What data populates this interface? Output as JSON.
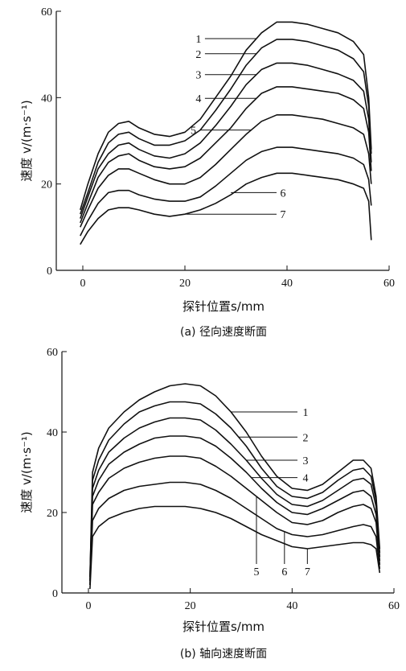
{
  "chart_data": [
    {
      "type": "line",
      "caption": "(a) 径向速度断面",
      "xlabel": "探针位置s/mm",
      "ylabel": "速度 v/(m·s⁻¹)",
      "xlim": [
        -5,
        60
      ],
      "ylim": [
        0,
        60
      ],
      "xticks": [
        "0",
        "20",
        "40",
        "60"
      ],
      "yticks": [
        "0",
        "20",
        "40",
        "60"
      ],
      "grid": false,
      "series": [
        {
          "name": "1",
          "x": [
            -0.5,
            1,
            3,
            5,
            7,
            9,
            11,
            14,
            17,
            20,
            23,
            26,
            29,
            32,
            35,
            38,
            41,
            44,
            47,
            50,
            53,
            55,
            56,
            56.5
          ],
          "y": [
            14,
            20,
            27,
            32,
            34,
            34.5,
            33,
            31.5,
            31,
            32,
            35,
            40,
            45,
            51,
            55,
            57.5,
            57.5,
            57,
            56,
            55,
            53,
            50,
            40,
            28
          ]
        },
        {
          "name": "2",
          "x": [
            -0.5,
            1,
            3,
            5,
            7,
            9,
            11,
            14,
            17,
            20,
            23,
            26,
            29,
            32,
            35,
            38,
            41,
            44,
            47,
            50,
            53,
            55,
            56,
            56.5
          ],
          "y": [
            13,
            18,
            25,
            29.5,
            31.5,
            32,
            30.5,
            29,
            29,
            30,
            32.5,
            37,
            42,
            47.5,
            51.5,
            53.5,
            53.5,
            53,
            52,
            51,
            49,
            46,
            38,
            27
          ]
        },
        {
          "name": "3",
          "x": [
            -0.5,
            1,
            3,
            5,
            7,
            9,
            11,
            14,
            17,
            20,
            23,
            26,
            29,
            32,
            35,
            38,
            41,
            44,
            47,
            50,
            53,
            55,
            56,
            56.5
          ],
          "y": [
            12,
            17,
            23.5,
            27,
            29,
            29.5,
            28,
            26.5,
            26,
            27,
            29.5,
            33.5,
            38,
            43,
            46.5,
            48,
            48,
            47.5,
            46.5,
            45.5,
            44,
            41.5,
            35,
            25
          ]
        },
        {
          "name": "4",
          "x": [
            -0.5,
            1,
            3,
            5,
            7,
            9,
            11,
            14,
            17,
            20,
            23,
            26,
            29,
            32,
            35,
            38,
            41,
            44,
            47,
            50,
            53,
            55,
            56,
            56.5
          ],
          "y": [
            11,
            15.5,
            21.5,
            25,
            26.5,
            27,
            25.5,
            24,
            23.5,
            24,
            26,
            29.5,
            33,
            37.5,
            41,
            42.5,
            42.5,
            42,
            41.5,
            41,
            39.5,
            37.5,
            32,
            23
          ]
        },
        {
          "name": "5",
          "x": [
            -0.5,
            1,
            3,
            5,
            7,
            9,
            11,
            14,
            17,
            20,
            23,
            26,
            29,
            32,
            35,
            38,
            41,
            44,
            47,
            50,
            53,
            55,
            56,
            56.5
          ],
          "y": [
            10,
            14,
            19,
            22,
            23.5,
            23.5,
            22.5,
            21,
            20,
            20,
            21.5,
            24.5,
            28,
            31.5,
            34.5,
            36,
            36,
            35.5,
            35,
            34,
            33,
            31.5,
            27,
            20
          ]
        },
        {
          "name": "6",
          "x": [
            -0.5,
            1,
            3,
            5,
            7,
            9,
            11,
            14,
            17,
            20,
            23,
            26,
            29,
            32,
            35,
            38,
            41,
            44,
            47,
            50,
            53,
            55,
            56,
            56.5
          ],
          "y": [
            8,
            11.5,
            15.5,
            18,
            18.5,
            18.5,
            17.5,
            16.5,
            16,
            16,
            17,
            19.5,
            22.5,
            25.5,
            27.5,
            28.5,
            28.5,
            28,
            27.5,
            27,
            26,
            24.5,
            21,
            15
          ]
        },
        {
          "name": "7",
          "x": [
            -0.5,
            1,
            3,
            5,
            7,
            9,
            11,
            14,
            17,
            20,
            23,
            26,
            29,
            32,
            35,
            38,
            41,
            44,
            47,
            50,
            53,
            55,
            56,
            56.5
          ],
          "y": [
            6,
            9,
            12,
            14,
            14.5,
            14.5,
            14,
            13,
            12.5,
            13,
            14,
            15.5,
            17.5,
            20,
            21.5,
            22.5,
            22.5,
            22,
            21.5,
            21,
            20,
            19,
            16,
            7
          ]
        }
      ],
      "curve_labels": [
        {
          "text": "1",
          "tx": 34,
          "ty": 57
        },
        {
          "text": "2",
          "tx": 34,
          "ty": 51
        },
        {
          "text": "3",
          "tx": 34,
          "ty": 45
        },
        {
          "text": "4",
          "tx": 34,
          "ty": 41
        },
        {
          "text": "5",
          "tx": 33,
          "ty": 35
        },
        {
          "text": "6",
          "tx": 29,
          "ty": 18
        },
        {
          "text": "7",
          "tx": 25,
          "ty": 13
        }
      ]
    },
    {
      "type": "line",
      "caption": "(b) 轴向速度断面",
      "xlabel": "探针位置s/mm",
      "ylabel": "速度 v/(m·s⁻¹)",
      "xlim": [
        -5,
        60
      ],
      "ylim": [
        0,
        60
      ],
      "xticks": [
        "0",
        "20",
        "40",
        "60"
      ],
      "yticks": [
        "0",
        "20",
        "40",
        "60"
      ],
      "grid": false,
      "series": [
        {
          "name": "1",
          "x": [
            0.3,
            0.8,
            2,
            4,
            7,
            10,
            13,
            16,
            19,
            22,
            25,
            28,
            31,
            34,
            37,
            40,
            43,
            46,
            49,
            52,
            54,
            55.5,
            56.5,
            57.2
          ],
          "y": [
            4,
            30,
            36,
            41,
            45,
            48,
            50,
            51.5,
            52,
            51.5,
            49,
            45,
            40,
            34,
            29,
            26,
            25.5,
            27,
            30,
            33,
            33,
            31,
            24,
            11
          ]
        },
        {
          "name": "2",
          "x": [
            0.3,
            0.8,
            2,
            4,
            7,
            10,
            13,
            16,
            19,
            22,
            25,
            28,
            31,
            34,
            37,
            40,
            43,
            46,
            49,
            52,
            54,
            55.5,
            56.5,
            57.2
          ],
          "y": [
            4,
            28,
            33,
            38,
            42,
            45,
            46.5,
            47.5,
            47.5,
            47,
            44.5,
            41,
            36.5,
            31,
            26.5,
            24,
            23.5,
            25,
            28,
            30.5,
            31,
            29,
            23,
            10
          ]
        },
        {
          "name": "3",
          "x": [
            0.3,
            0.8,
            2,
            4,
            7,
            10,
            13,
            16,
            19,
            22,
            25,
            28,
            31,
            34,
            37,
            40,
            43,
            46,
            49,
            52,
            54,
            55.5,
            56.5,
            57.2
          ],
          "y": [
            3,
            26,
            30.5,
            35,
            38.5,
            41,
            42.5,
            43.5,
            43.5,
            43,
            40.5,
            37,
            33,
            28.5,
            24.5,
            22,
            21.5,
            23,
            25.5,
            28,
            28.5,
            27,
            21.5,
            9
          ]
        },
        {
          "name": "4",
          "x": [
            0.3,
            0.8,
            2,
            4,
            7,
            10,
            13,
            16,
            19,
            22,
            25,
            28,
            31,
            34,
            37,
            40,
            43,
            46,
            49,
            52,
            54,
            55.5,
            56.5,
            57.2
          ],
          "y": [
            3,
            24,
            28,
            32,
            35,
            37,
            38.5,
            39,
            39,
            38.5,
            36.5,
            33.5,
            30,
            26,
            22.5,
            20,
            19.5,
            21,
            23,
            25,
            25.5,
            24,
            19.5,
            8
          ]
        },
        {
          "name": "5",
          "x": [
            0.3,
            0.8,
            2,
            4,
            7,
            10,
            13,
            16,
            19,
            22,
            25,
            28,
            31,
            34,
            37,
            40,
            43,
            46,
            49,
            52,
            54,
            55.5,
            56.5,
            57.2
          ],
          "y": [
            2,
            22,
            25,
            28.5,
            31,
            32.5,
            33.5,
            34,
            34,
            33.5,
            31.5,
            29,
            26,
            23,
            20,
            17.5,
            17,
            18,
            20,
            21.5,
            22,
            21,
            17.5,
            7
          ]
        },
        {
          "name": "6",
          "x": [
            0.3,
            0.8,
            2,
            4,
            7,
            10,
            13,
            16,
            19,
            22,
            25,
            28,
            31,
            34,
            37,
            40,
            43,
            46,
            49,
            52,
            54,
            55.5,
            56.5,
            57.2
          ],
          "y": [
            2,
            18,
            21,
            23.5,
            25.5,
            26.5,
            27,
            27.5,
            27.5,
            27,
            25.5,
            23.5,
            21,
            18.5,
            16,
            14.5,
            14,
            14.5,
            15.5,
            16.5,
            17,
            16.5,
            14,
            6
          ]
        },
        {
          "name": "7",
          "x": [
            0.3,
            0.8,
            2,
            4,
            7,
            10,
            13,
            16,
            19,
            22,
            25,
            28,
            31,
            34,
            37,
            40,
            43,
            46,
            49,
            52,
            54,
            55.5,
            56.5,
            57.2
          ],
          "y": [
            1,
            14,
            16.5,
            18.5,
            20,
            21,
            21.5,
            21.5,
            21.5,
            21,
            20,
            18.5,
            16.5,
            14.5,
            13,
            11.5,
            11,
            11.5,
            12,
            12.5,
            12.5,
            12,
            11,
            5
          ]
        }
      ],
      "curve_labels": [
        {
          "text": "1",
          "tx": 28,
          "ty": 45
        },
        {
          "text": "2",
          "tx": 29.5,
          "ty": 40
        },
        {
          "text": "3",
          "tx": 31,
          "ty": 36
        },
        {
          "text": "4",
          "tx": 32,
          "ty": 32
        },
        {
          "text": "5",
          "tx": 33,
          "ty": 17
        },
        {
          "text": "6",
          "tx": 38.5,
          "ty": 15
        },
        {
          "text": "7",
          "tx": 43,
          "ty": 11
        }
      ]
    }
  ]
}
